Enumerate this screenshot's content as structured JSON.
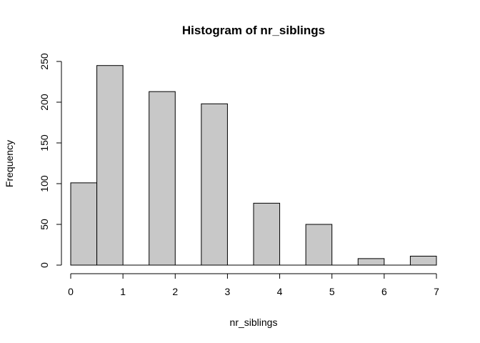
{
  "chart_data": {
    "type": "bar",
    "title": "Histogram of nr_siblings",
    "xlabel": "nr_siblings",
    "ylabel": "Frequency",
    "bins": [
      {
        "x0": 0.0,
        "x1": 0.5,
        "count": 101
      },
      {
        "x0": 0.5,
        "x1": 1.0,
        "count": 245
      },
      {
        "x0": 1.0,
        "x1": 1.5,
        "count": 0
      },
      {
        "x0": 1.5,
        "x1": 2.0,
        "count": 213
      },
      {
        "x0": 2.0,
        "x1": 2.5,
        "count": 0
      },
      {
        "x0": 2.5,
        "x1": 3.0,
        "count": 198
      },
      {
        "x0": 3.0,
        "x1": 3.5,
        "count": 0
      },
      {
        "x0": 3.5,
        "x1": 4.0,
        "count": 76
      },
      {
        "x0": 4.0,
        "x1": 4.5,
        "count": 0
      },
      {
        "x0": 4.5,
        "x1": 5.0,
        "count": 50
      },
      {
        "x0": 5.0,
        "x1": 5.5,
        "count": 0
      },
      {
        "x0": 5.5,
        "x1": 6.0,
        "count": 8
      },
      {
        "x0": 6.0,
        "x1": 6.5,
        "count": 0
      },
      {
        "x0": 6.5,
        "x1": 7.0,
        "count": 11
      }
    ],
    "xlim": [
      0,
      7
    ],
    "ylim": [
      0,
      250
    ],
    "x_ticks": [
      0,
      1,
      2,
      3,
      4,
      5,
      6,
      7
    ],
    "y_ticks": [
      0,
      50,
      100,
      150,
      200,
      250
    ],
    "bar_fill": "#c8c8c8",
    "bar_stroke": "#000000",
    "grid": false
  }
}
